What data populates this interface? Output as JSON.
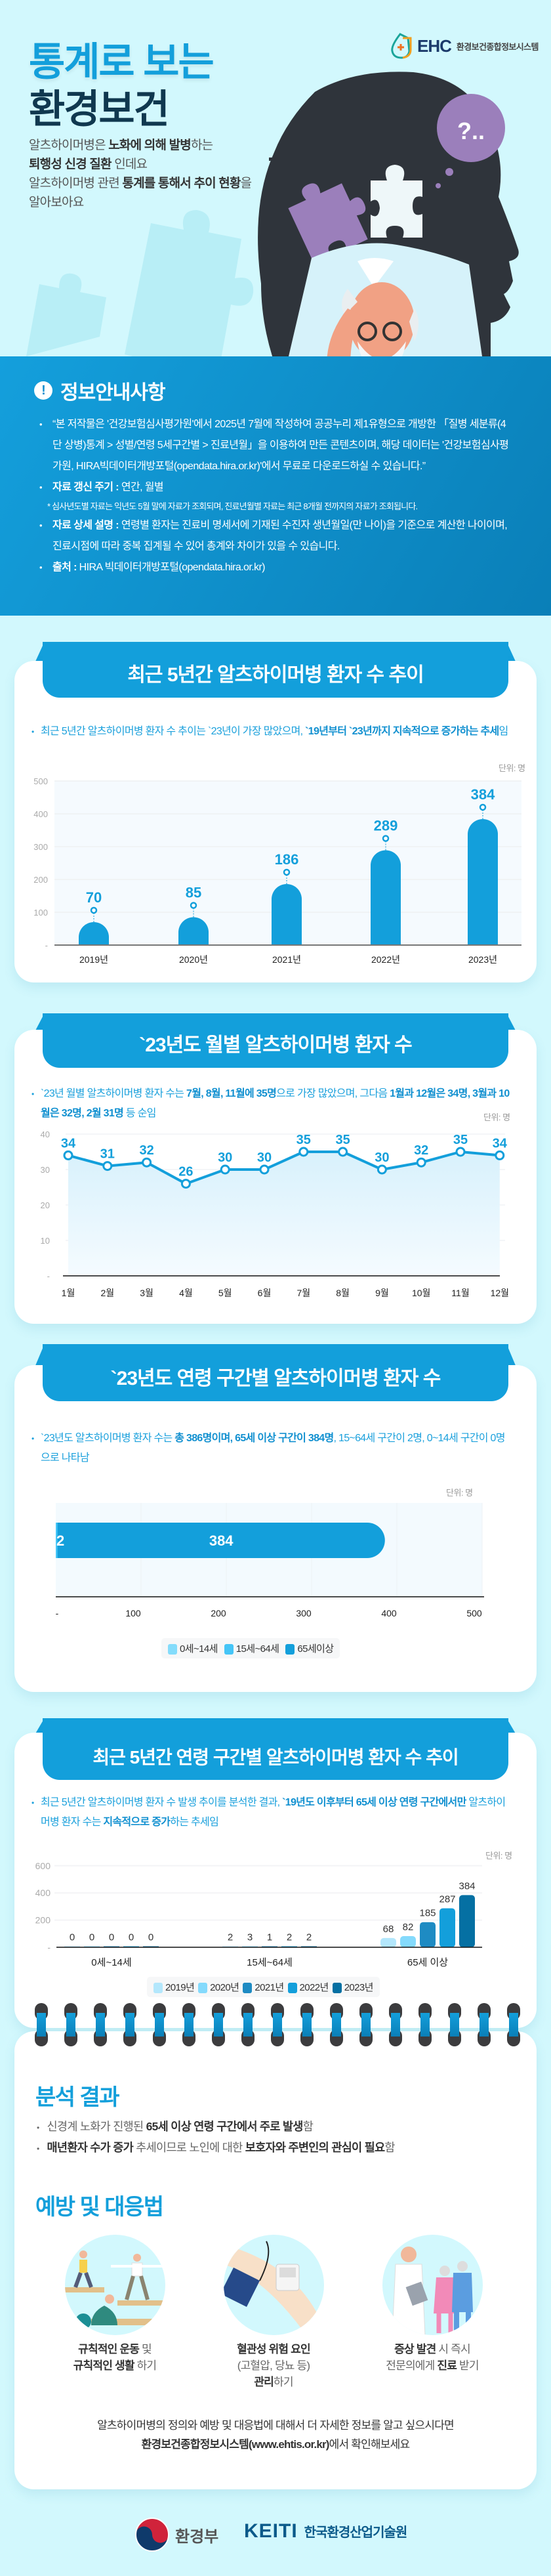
{
  "hero": {
    "title_line1": "통계로 보는",
    "title_line2": "환경보건",
    "intro": [
      [
        {
          "t": "알츠하이머병은 "
        },
        {
          "t": "노화에 의해 발병",
          "b": true
        },
        {
          "t": "하는"
        }
      ],
      [
        {
          "t": "퇴행성 신경 질환",
          "b": true
        },
        {
          "t": " 인데요"
        }
      ],
      [
        {
          "t": "알츠하이머병 관련 "
        },
        {
          "t": "통계를 통해서 추이 현황",
          "b": true
        },
        {
          "t": "을"
        }
      ],
      [
        {
          "t": "알아보아요"
        }
      ]
    ],
    "logo_mark": "EHC",
    "logo_name": "환경보건종합정보시스템",
    "bubble_text": "?..",
    "colors": {
      "primary": "#139fdb",
      "title_dark": "#10384f",
      "head": "#2f343b",
      "puzzle": "#9b7fbb"
    }
  },
  "info": {
    "title": "정보안내사항",
    "items": [
      [
        {
          "t": "“본 저작물은 '건강보험심사평가원'에서 2025년 7월에 작성하여 공공누리 제1유형으로 개방한 「질병 세분류(4단 상병)통계 > 성별/연령 5세구간별 > 진료년월」을 이용하여 만든 콘텐츠이며,  해당 데이터는 '건강보험심사평가원, HIRA빅데이터개방포털(opendata.hira.or.kr)'에서 무료로  다운로드하실 수 있습니다.”"
        }
      ],
      [
        {
          "t": "자료 갱신 주기 :",
          "b": true
        },
        {
          "t": " 연간, 월별"
        }
      ],
      [
        {
          "t": "자료 상세 설명 :",
          "b": true
        },
        {
          "t": " 연령별 환자는 진료비 명세서에 기재된 수진자 생년월일(만 나이)을 기준으로 계산한 나이이며, 진료시점에 따라 중복 집계될 수 있어 총계와 차이가 있을 수 있습니다."
        }
      ],
      [
        {
          "t": "출처 :",
          "b": true
        },
        {
          "t": " HIRA 빅데이터개방포털(opendata.hira.or.kr)"
        }
      ]
    ],
    "note": "* 심사년도별 자료는 익년도 5월 말에 자료가 조회되며, 진료년월별 자료는 최근 8개월 전까지의 자료가 조회됩니다."
  },
  "sections": [
    {
      "title": "최근 5년간 알츠하이머병 환자 수 추이",
      "desc": [
        {
          "t": "최근 5년간 알츠하이머병 환자 수 추이는 `23년이 가장 많았으며, "
        },
        {
          "t": "`19년부터 `23년까지 지속적으로 증가하는 추세",
          "b": true
        },
        {
          "t": "임"
        }
      ]
    },
    {
      "title": "`23년도 월별 알츠하이머병 환자 수",
      "desc": [
        {
          "t": "`23년 월별 알츠하이머병 환자 수는 "
        },
        {
          "t": "7월, 8월, 11월에 35명",
          "b": true
        },
        {
          "t": "으로 가장 많았으며, 그다음 "
        },
        {
          "t": "1월과 12월은 34명, 3월과 10월은 32명, 2월 31명",
          "b": true
        },
        {
          "t": " 등 순임"
        }
      ]
    },
    {
      "title": "`23년도 연령 구간별 알츠하이머병 환자 수",
      "desc": [
        {
          "t": "`23년도 알츠하이머병 환자 수는 "
        },
        {
          "t": "총 386명이며, 65세 이상 구간이 384명",
          "b": true
        },
        {
          "t": ", 15~64세 구간이 2명, 0~14세 구간이 0명으로 나타남"
        }
      ]
    },
    {
      "title": "최근 5년간 연령 구간별 알츠하이머병 환자 수 추이",
      "desc": [
        {
          "t": "최근 5년간 알츠하이머병 환자 수 발생 추이를 분석한 결과, "
        },
        {
          "t": "`19년도 이후부터 65세 이상 연령 구간에서만",
          "b": true
        },
        {
          "t": " 알츠하이머병 환자 수는 "
        },
        {
          "t": "지속적으로 증가",
          "b": true
        },
        {
          "t": "하는 추세임"
        }
      ]
    }
  ],
  "chart_data": [
    {
      "type": "bar",
      "unit": "단위: 명",
      "categories": [
        "2019년",
        "2020년",
        "2021년",
        "2022년",
        "2023년"
      ],
      "values": [
        70,
        85,
        186,
        289,
        384
      ],
      "ylim": [
        0,
        500
      ],
      "yticks": [
        0,
        100,
        200,
        300,
        400,
        500
      ],
      "ytick_labels": [
        "-",
        "100",
        "200",
        "300",
        "400",
        "500"
      ],
      "grid": true,
      "color": "#139fdb"
    },
    {
      "type": "line",
      "unit": "단위: 명",
      "categories": [
        "1월",
        "2월",
        "3월",
        "4월",
        "5월",
        "6월",
        "7월",
        "8월",
        "9월",
        "10월",
        "11월",
        "12월"
      ],
      "values": [
        34,
        31,
        32,
        26,
        30,
        30,
        35,
        35,
        30,
        32,
        35,
        34
      ],
      "ylim": [
        0,
        40
      ],
      "yticks": [
        0,
        10,
        20,
        30,
        40
      ],
      "ytick_labels": [
        "-",
        "10",
        "20",
        "30",
        "40"
      ],
      "grid": true,
      "color": "#139fdb"
    },
    {
      "type": "bar",
      "orientation": "horizontal-stacked",
      "unit": "단위: 명",
      "series": [
        {
          "name": "0세~14세",
          "value": 0,
          "color": "#84dcfb"
        },
        {
          "name": "15세~64세",
          "value": 2,
          "color": "#45c5f7"
        },
        {
          "name": "65세이상",
          "value": 384,
          "color": "#139fdb"
        }
      ],
      "data_labels": [
        "2",
        "384"
      ],
      "xlim": [
        0,
        500
      ],
      "xticks": [
        0,
        100,
        200,
        300,
        400,
        500
      ],
      "xtick_labels": [
        "-",
        "100",
        "200",
        "300",
        "400",
        "500"
      ],
      "grid": true,
      "legend": "bottom"
    },
    {
      "type": "bar",
      "orientation": "grouped",
      "unit": "단위: 명",
      "categories": [
        "0세~14세",
        "15세~64세",
        "65세 이상"
      ],
      "series": [
        {
          "name": "2019년",
          "values": [
            0,
            2,
            68
          ],
          "color": "#b3e7fc"
        },
        {
          "name": "2020년",
          "values": [
            0,
            3,
            82
          ],
          "color": "#84dafc"
        },
        {
          "name": "2021년",
          "values": [
            0,
            1,
            185
          ],
          "color": "#1e8bc3"
        },
        {
          "name": "2022년",
          "values": [
            0,
            2,
            287
          ],
          "color": "#139fdb"
        },
        {
          "name": "2023년",
          "values": [
            0,
            2,
            384
          ],
          "color": "#0570a3"
        }
      ],
      "ylim": [
        0,
        600
      ],
      "yticks": [
        0,
        200,
        400,
        600
      ],
      "ytick_labels": [
        "-",
        "200",
        "400",
        "600"
      ],
      "grid": true,
      "legend": "bottom"
    }
  ],
  "analysis": {
    "title": "분석 결과",
    "items": [
      [
        {
          "t": "신경계 노화가 진행된 "
        },
        {
          "t": "65세 이상 연령 구간에서 주로 발생",
          "b": true
        },
        {
          "t": "함"
        }
      ],
      [
        {
          "t": "매년환자 수가 증가",
          "b": true
        },
        {
          "t": " 추세이므로 노인에 대한 "
        },
        {
          "t": "보호자와 주변인의 관심이 필요",
          "b": true
        },
        {
          "t": "함"
        }
      ]
    ]
  },
  "prevention": {
    "title": "예방 및 대응법",
    "items": [
      {
        "icon": "exercise-illustration",
        "lines": [
          [
            {
              "t": "규칙적인 운동",
              "b": true
            },
            {
              "t": " 및"
            }
          ],
          [
            {
              "t": "규칙적인 생활",
              "b": true
            },
            {
              "t": " 하기"
            }
          ]
        ]
      },
      {
        "icon": "blood-pressure-illustration",
        "lines": [
          [
            {
              "t": "혈관성 위험 요인",
              "b": true
            }
          ],
          [
            {
              "t": "(고혈압, 당뇨 등)"
            }
          ],
          [
            {
              "t": "관리",
              "b": true
            },
            {
              "t": "하기"
            }
          ]
        ]
      },
      {
        "icon": "doctor-consultation-illustration",
        "lines": [
          [
            {
              "t": "증상 발견",
              "b": true
            },
            {
              "t": " 시 즉시"
            }
          ],
          [
            {
              "t": "전문의에게 "
            },
            {
              "t": "진료",
              "b": true
            },
            {
              "t": " 받기"
            }
          ]
        ]
      }
    ]
  },
  "footer": {
    "line1": "알츠하이머병의 정의와 예방 및 대응법에 대해서 더 자세한 정보를 알고 싶으시다면",
    "line2": [
      {
        "t": "환경보건종합정보시스템(www.ehtis.or.kr)",
        "b": true
      },
      {
        "t": "에서 확인해보세요"
      }
    ],
    "logo_ministry": "환경부",
    "logo_keiti": "KEITI",
    "logo_keiti_name": "한국환경산업기술원"
  }
}
